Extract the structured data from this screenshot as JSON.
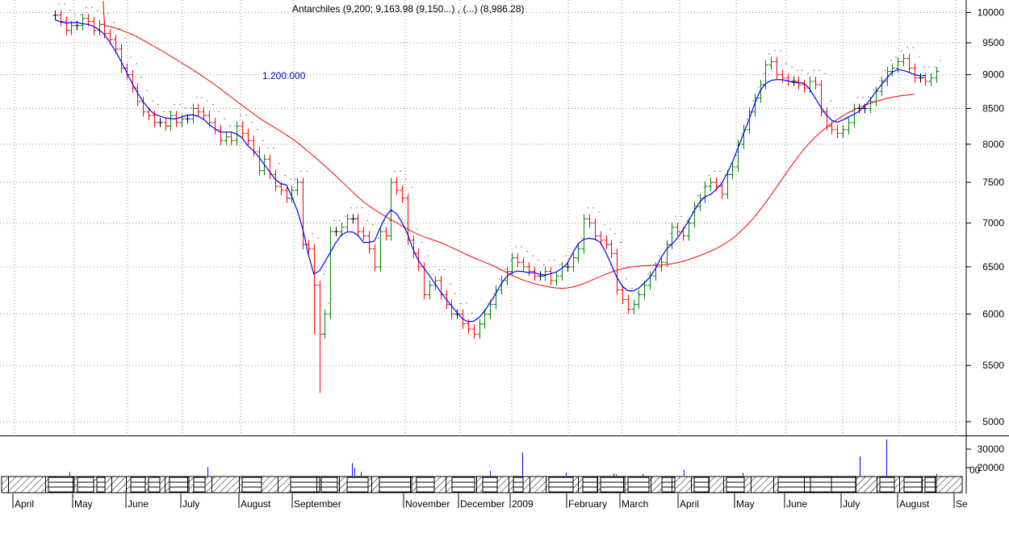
{
  "chart_data": {
    "type": "candlestick",
    "title": "Antarchiles (9,200; 9,163.98 (9,150...) , (...) (8,986.28)",
    "annotation": "1.200.000",
    "price_axis": {
      "min": 4900,
      "max": 10050,
      "ticks": [
        5000,
        5500,
        6000,
        6500,
        7000,
        7500,
        8000,
        8500,
        9000,
        9500,
        10000
      ],
      "tick_labels": [
        "5000",
        "5500",
        "6000",
        "6500",
        "7000",
        "7500",
        "8000",
        "8500",
        "9000",
        "9500",
        "10000"
      ],
      "scale": "log"
    },
    "volume_axis": {
      "max": 40000,
      "ticks": [
        20000,
        30000
      ],
      "tick_labels": [
        "20000",
        "30000"
      ],
      "unit_label": "00"
    },
    "months": [
      "April",
      "May",
      "June",
      "July",
      "August",
      "September",
      "November",
      "December",
      "2009",
      "February",
      "March",
      "April",
      "May",
      "June",
      "July",
      "August",
      "Se"
    ],
    "colors": {
      "up": "#008000",
      "down": "#ff0000",
      "neutral": "#000000",
      "fast_ma": "#0000ff",
      "slow_ma": "#ff0000",
      "volume": "#0000ff",
      "grid": "#888888"
    },
    "grid": true,
    "close": [
      9955,
      9850,
      9700,
      9780,
      9780,
      9900,
      9850,
      9700,
      9800,
      9650,
      9550,
      9400,
      9100,
      9000,
      8800,
      8600,
      8450,
      8400,
      8300,
      8300,
      8250,
      8400,
      8300,
      8350,
      8350,
      8500,
      8450,
      8400,
      8300,
      8200,
      8050,
      8100,
      8050,
      8250,
      8150,
      8050,
      7900,
      7650,
      7800,
      7600,
      7450,
      7400,
      7300,
      7400,
      7500,
      6750,
      6700,
      6300,
      5800,
      6000,
      6900,
      6900,
      6950,
      7050,
      7050,
      6900,
      6850,
      6700,
      6500,
      6900,
      6850,
      7500,
      7400,
      7300,
      6800,
      6650,
      6500,
      6200,
      6300,
      6350,
      6200,
      6100,
      6000,
      6000,
      5900,
      5850,
      5800,
      5900,
      6000,
      6100,
      6250,
      6350,
      6450,
      6600,
      6550,
      6500,
      6450,
      6400,
      6400,
      6450,
      6350,
      6400,
      6500,
      6500,
      6600,
      6700,
      7050,
      7000,
      6850,
      6800,
      6750,
      6650,
      6250,
      6150,
      6050,
      6100,
      6200,
      6300,
      6400,
      6500,
      6550,
      6750,
      6950,
      6900,
      6850,
      7000,
      7200,
      7300,
      7450,
      7500,
      7450,
      7350,
      7600,
      7700,
      8000,
      8200,
      8450,
      8650,
      8850,
      9150,
      9200,
      9000,
      8950,
      8900,
      8900,
      8850,
      8800,
      8900,
      8850,
      8450,
      8250,
      8200,
      8150,
      8200,
      8300,
      8500,
      8500,
      8500,
      8600,
      8750,
      8900,
      9050,
      9100,
      9200,
      9250,
      9100,
      8950,
      8950,
      8900,
      8950,
      9050
    ]
  }
}
